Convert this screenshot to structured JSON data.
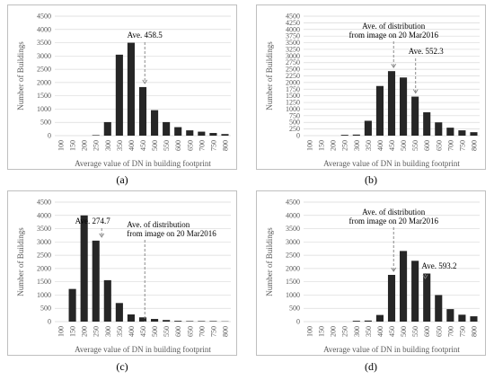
{
  "captions": [
    "(a)",
    "(b)",
    "(c)",
    "(d)"
  ],
  "chart_data": [
    {
      "panel": "a",
      "type": "bar",
      "categories": [
        "100",
        "150",
        "200",
        "250",
        "300",
        "350",
        "400",
        "450",
        "500",
        "550",
        "600",
        "650",
        "700",
        "750",
        "800"
      ],
      "values": [
        0,
        0,
        0,
        20,
        510,
        3050,
        3500,
        1830,
        960,
        510,
        320,
        200,
        150,
        100,
        60
      ],
      "xlabel": "Average value of DN in building footprint",
      "ylabel": "Number of Buildings",
      "ylim": [
        0,
        4500
      ],
      "yticks": [
        0,
        500,
        1000,
        1500,
        2000,
        2500,
        3000,
        3500,
        4000,
        4500
      ],
      "grid": "horizontal",
      "annotations": [
        {
          "text": "Ave. 458.5",
          "x": 458.5,
          "line": "dashed-arrow"
        }
      ]
    },
    {
      "panel": "b",
      "type": "bar",
      "categories": [
        "100",
        "150",
        "200",
        "250",
        "300",
        "350",
        "400",
        "450",
        "500",
        "550",
        "600",
        "650",
        "700",
        "750",
        "800"
      ],
      "values": [
        0,
        0,
        0,
        30,
        40,
        560,
        1870,
        2430,
        2190,
        1470,
        880,
        500,
        300,
        200,
        130
      ],
      "xlabel": "Average value of DN in building footprint",
      "ylabel": "Number of Buildings",
      "ylim": [
        0,
        4500
      ],
      "yticks": [
        0,
        250,
        500,
        750,
        1000,
        1250,
        1500,
        1750,
        2000,
        2250,
        2500,
        2750,
        3000,
        3250,
        3500,
        3750,
        4000,
        4250,
        4500
      ],
      "grid": "horizontal",
      "annotations": [
        {
          "text": "Ave. of distribution",
          "text2": "from image on 20 Mar2016",
          "x": 458.5,
          "line": "dashed-arrow"
        },
        {
          "text": "Ave.  552.3",
          "x": 552.3,
          "line": "dashed-arrow"
        }
      ]
    },
    {
      "panel": "c",
      "type": "bar",
      "categories": [
        "100",
        "150",
        "200",
        "250",
        "300",
        "350",
        "400",
        "450",
        "500",
        "550",
        "600",
        "650",
        "700",
        "750",
        "800"
      ],
      "values": [
        0,
        1230,
        4000,
        3050,
        1560,
        700,
        270,
        160,
        100,
        60,
        30,
        20,
        20,
        20,
        10
      ],
      "xlabel": "Average value of DN in building footprint",
      "ylabel": "Number of Buildings",
      "ylim": [
        0,
        4500
      ],
      "yticks": [
        0,
        500,
        1000,
        1500,
        2000,
        2500,
        3000,
        3500,
        4000,
        4500
      ],
      "grid": "horizontal",
      "annotations": [
        {
          "text": "Ave.  274.7",
          "x": 274.7,
          "line": "dashed-arrow"
        },
        {
          "text": "Ave. of distribution",
          "text2": "from image on 20 Mar2016",
          "x": 458.5,
          "line": "dashed"
        }
      ]
    },
    {
      "panel": "d",
      "type": "bar",
      "categories": [
        "100",
        "150",
        "200",
        "250",
        "300",
        "350",
        "400",
        "450",
        "500",
        "550",
        "600",
        "650",
        "700",
        "750",
        "800"
      ],
      "values": [
        0,
        0,
        0,
        0,
        30,
        40,
        250,
        1760,
        2660,
        2290,
        1810,
        1000,
        470,
        260,
        200
      ],
      "xlabel": "Average value of DN in building footprint",
      "ylabel": "Number of Buildings",
      "ylim": [
        0,
        4500
      ],
      "yticks": [
        0,
        500,
        1000,
        1500,
        2000,
        2500,
        3000,
        3500,
        4000,
        4500
      ],
      "grid": "horizontal",
      "annotations": [
        {
          "text": "Ave. of distribution",
          "text2": "from image on 20 Mar2016",
          "x": 458.5,
          "line": "dashed-arrow"
        },
        {
          "text": "Ave.  593.2",
          "x": 593.2,
          "line": "dashed-arrow"
        }
      ]
    }
  ],
  "colors": {
    "bar": "#262626",
    "grid": "#d9d9d9",
    "dashed": "#7f7f7f",
    "axis_text": "#595959"
  }
}
